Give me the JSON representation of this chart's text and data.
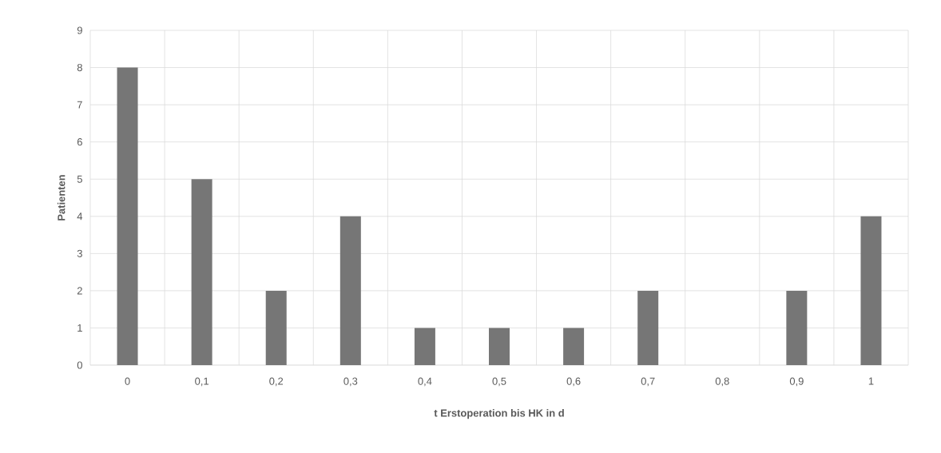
{
  "chart_data": {
    "type": "bar",
    "xlabel": "t Erstoperation bis HK in d",
    "ylabel": "Patienten",
    "categories": [
      "0",
      "0,1",
      "0,2",
      "0,3",
      "0,4",
      "0,5",
      "0,6",
      "0,7",
      "0,8",
      "0,9",
      "1"
    ],
    "values": [
      8,
      5,
      2,
      4,
      1,
      1,
      1,
      2,
      0,
      2,
      4
    ],
    "color": "#767676",
    "ylim": [
      0,
      9
    ],
    "yticks": [
      0,
      1,
      2,
      3,
      4,
      5,
      6,
      7,
      8,
      9
    ],
    "grid": true
  }
}
